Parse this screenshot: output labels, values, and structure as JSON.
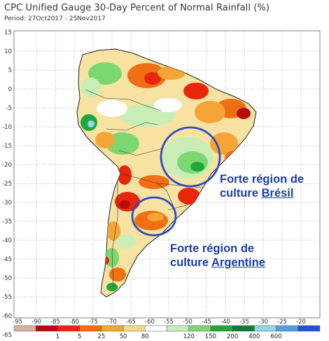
{
  "header": {
    "title": "CPC Unified Gauge 30-Day Percent of Normal Rainfall (%)",
    "period": "Period: 27Oct2017 - 25Nov2017"
  },
  "map": {
    "lat_labels": [
      "15",
      "10",
      "5",
      "0",
      "-5",
      "-10",
      "-15",
      "-20",
      "-25",
      "-30",
      "-35",
      "-40",
      "-45",
      "-50",
      "-55",
      "-60",
      "-65"
    ],
    "lon_labels": [
      "-95",
      "-90",
      "-85",
      "-80",
      "-75",
      "-70",
      "-65",
      "-60",
      "-55",
      "-50",
      "-45",
      "-40",
      "-35",
      "-30",
      "-25",
      "-20"
    ]
  },
  "annotations": {
    "brazil_line1": "Forte région de",
    "brazil_line2_prefix": "culture ",
    "brazil_line2_country": "Brésil",
    "argentina_line1": "Forte région de",
    "argentina_line2_prefix": "culture ",
    "argentina_line2_country": "Argentine"
  },
  "legend": {
    "labels": [
      "1",
      "5",
      "25",
      "50",
      "80",
      "120",
      "150",
      "200",
      "400",
      "600"
    ],
    "colors": [
      "#d9b0a0",
      "#b50d0d",
      "#e8260c",
      "#f06f15",
      "#f5a535",
      "#f6d98b",
      "#ffffff",
      "#c8edb7",
      "#7bd870",
      "#22a83a",
      "#0e7e2e",
      "#8fd6ec",
      "#4aa1e8",
      "#1c56d1"
    ]
  },
  "colors": {
    "annotation": "#1a3fa8",
    "circle": "#2b4bc9",
    "ocean": "#ffffff"
  }
}
